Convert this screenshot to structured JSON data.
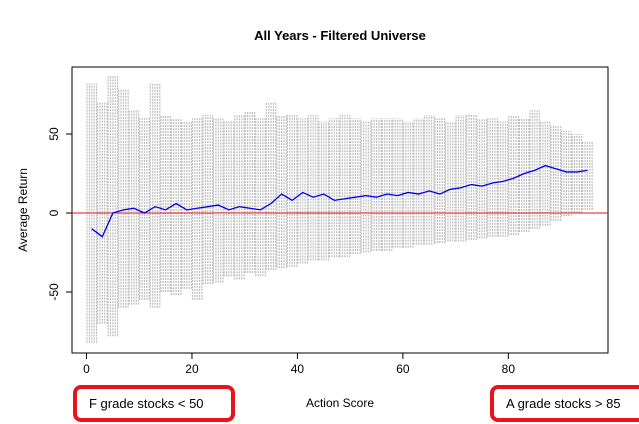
{
  "chart_data": {
    "type": "range-scatter",
    "title": "All Years - Filtered Universe",
    "x_label": "Action Score",
    "y_label": "Average Return",
    "x": [
      1,
      3,
      5,
      7,
      9,
      11,
      13,
      15,
      17,
      19,
      21,
      23,
      25,
      27,
      29,
      31,
      33,
      35,
      37,
      39,
      41,
      43,
      45,
      47,
      49,
      51,
      53,
      55,
      57,
      59,
      61,
      63,
      65,
      67,
      69,
      71,
      73,
      75,
      77,
      79,
      81,
      83,
      85,
      87,
      89,
      91,
      93,
      95
    ],
    "series": [
      {
        "color": "#bdbdbd",
        "low": [
          -82,
          -70,
          -78,
          -60,
          -58,
          -55,
          -60,
          -50,
          -52,
          -48,
          -55,
          -45,
          -44,
          -40,
          -42,
          -38,
          -40,
          -36,
          -35,
          -34,
          -32,
          -30,
          -30,
          -28,
          -28,
          -26,
          -25,
          -24,
          -24,
          -22,
          -22,
          -20,
          -20,
          -19,
          -18,
          -18,
          -17,
          -16,
          -15,
          -15,
          -14,
          -12,
          -10,
          -8,
          -5,
          -2,
          0,
          2
        ],
        "high": [
          82,
          70,
          87,
          78,
          65,
          60,
          82,
          62,
          60,
          58,
          60,
          62,
          60,
          58,
          62,
          64,
          60,
          70,
          62,
          62,
          60,
          62,
          58,
          60,
          62,
          60,
          58,
          60,
          60,
          60,
          58,
          60,
          62,
          60,
          58,
          62,
          62,
          60,
          60,
          58,
          62,
          60,
          65,
          58,
          55,
          52,
          50,
          45
        ]
      },
      {
        "color": "#0000e6",
        "values": [
          -10,
          -15,
          0,
          2,
          3,
          0,
          4,
          2,
          6,
          2,
          3,
          4,
          5,
          2,
          4,
          3,
          2,
          6,
          12,
          8,
          13,
          10,
          12,
          8,
          9,
          10,
          11,
          10,
          12,
          11,
          13,
          12,
          14,
          12,
          15,
          16,
          18,
          17,
          19,
          20,
          22,
          25,
          27,
          30,
          28,
          26,
          26,
          27
        ]
      }
    ],
    "hline": 0,
    "hline_color": "#e8141b",
    "xlim": [
      -2.75,
      98.9
    ],
    "ylim": [
      -88.6,
      92.4
    ],
    "xticks": [
      0,
      20,
      40,
      60,
      80
    ],
    "yticks": [
      -50,
      0,
      50
    ],
    "annotations": [
      {
        "text": "F grade stocks < 50"
      },
      {
        "text": "A grade stocks > 85"
      }
    ]
  }
}
